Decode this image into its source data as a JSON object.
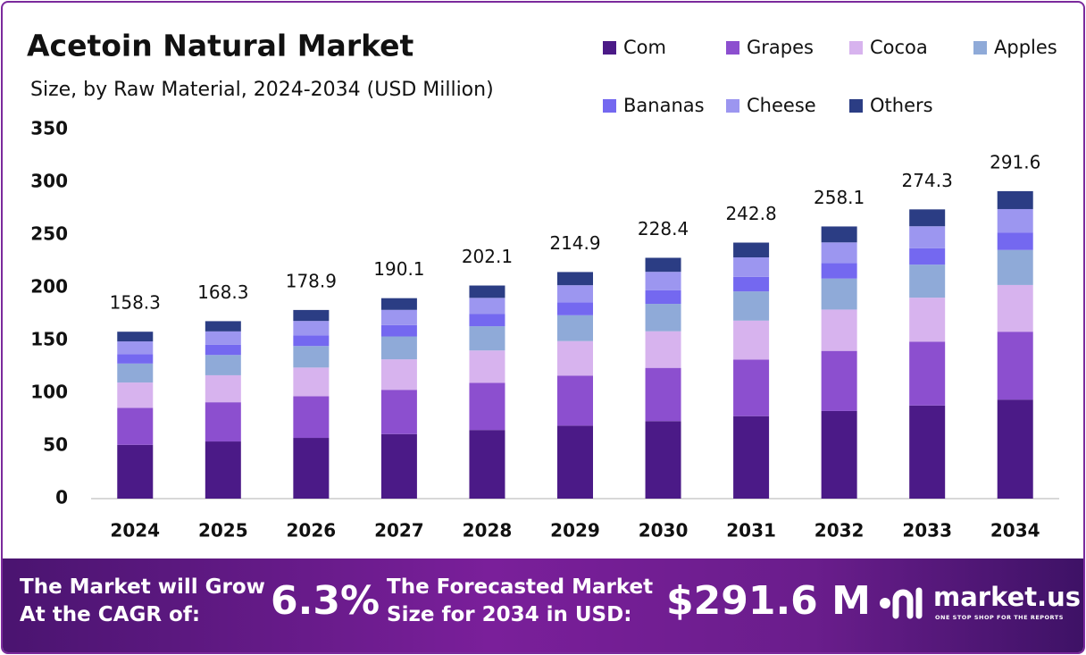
{
  "chart_data": {
    "type": "stacked_bar",
    "title": "Acetoin Natural Market",
    "subtitle": "Size, by Raw Material, 2024-2034 (USD Million)",
    "categories": [
      "2024",
      "2025",
      "2026",
      "2027",
      "2028",
      "2029",
      "2030",
      "2031",
      "2032",
      "2033",
      "2034"
    ],
    "series": [
      {
        "name": "Com",
        "color": "#4b1a87",
        "values": [
          51.0,
          54.2,
          57.6,
          61.2,
          65.1,
          69.2,
          73.5,
          78.2,
          83.1,
          88.3,
          93.9
        ]
      },
      {
        "name": "Grapes",
        "color": "#8c4fcf",
        "values": [
          35.0,
          37.2,
          39.5,
          42.0,
          44.7,
          47.5,
          50.5,
          53.7,
          57.0,
          60.6,
          64.4
        ]
      },
      {
        "name": "Cocoa",
        "color": "#d7b3ee",
        "values": [
          24.1,
          25.6,
          27.2,
          28.9,
          30.7,
          32.7,
          34.7,
          36.9,
          39.2,
          41.7,
          44.3
        ]
      },
      {
        "name": "Apples",
        "color": "#8faad8",
        "values": [
          18.0,
          19.2,
          20.4,
          21.7,
          23.0,
          24.5,
          26.0,
          27.7,
          29.4,
          31.3,
          33.2
        ]
      },
      {
        "name": "Bananas",
        "color": "#7468f0",
        "values": [
          9.0,
          9.6,
          10.2,
          10.8,
          11.5,
          12.2,
          13.0,
          13.8,
          14.7,
          15.6,
          16.6
        ]
      },
      {
        "name": "Cheese",
        "color": "#9c96f0",
        "values": [
          12.0,
          12.8,
          13.6,
          14.4,
          15.4,
          16.3,
          17.4,
          18.5,
          19.6,
          20.8,
          22.2
        ]
      },
      {
        "name": "Others",
        "color": "#2b3d84",
        "values": [
          9.2,
          9.7,
          10.4,
          11.1,
          11.7,
          12.5,
          13.3,
          14.0,
          15.1,
          16.0,
          17.0
        ]
      }
    ],
    "totals": [
      158.3,
      168.3,
      178.9,
      190.1,
      202.1,
      214.9,
      228.4,
      242.8,
      258.1,
      274.3,
      291.6
    ],
    "ylim": [
      0,
      350
    ],
    "yticks": [
      0,
      50,
      100,
      150,
      200,
      250,
      300,
      350
    ],
    "grid": false,
    "legend": "top-right"
  },
  "footer": {
    "cagr_label": [
      "The Market will Grow",
      "At the CAGR of:"
    ],
    "cagr_value": "6.3%",
    "forecast_label": [
      "The Forecasted Market",
      "Size for 2034 in USD:"
    ],
    "forecast_value": "$291.6 M",
    "brand": "market.us",
    "tagline": "ONE STOP SHOP FOR THE REPORTS"
  }
}
